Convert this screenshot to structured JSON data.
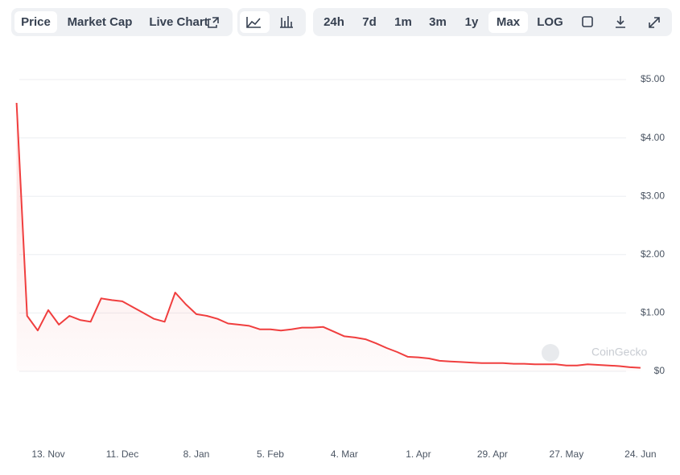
{
  "toolbar": {
    "left": [
      "Price",
      "Market Cap",
      "Live Chart"
    ],
    "right": [
      "24h",
      "7d",
      "1m",
      "3m",
      "1y",
      "Max",
      "LOG"
    ],
    "selected_left": "Price",
    "selected_right": "Max"
  },
  "chart_data": {
    "type": "line",
    "watermark": "CoinGecko",
    "color": "#f03e3e",
    "categories": [
      null,
      null,
      null,
      "13. Nov",
      null,
      null,
      null,
      null,
      null,
      null,
      "11. Dec",
      null,
      null,
      null,
      null,
      null,
      null,
      "8. Jan",
      null,
      null,
      null,
      null,
      null,
      null,
      "5. Feb",
      null,
      null,
      null,
      null,
      null,
      null,
      "4. Mar",
      null,
      null,
      null,
      null,
      null,
      null,
      "1. Apr",
      null,
      null,
      null,
      null,
      null,
      null,
      "29. Apr",
      null,
      null,
      null,
      null,
      null,
      null,
      "27. May",
      null,
      null,
      null,
      null,
      null,
      null,
      "24. Jun"
    ],
    "values": [
      4.6,
      0.95,
      0.7,
      1.05,
      0.8,
      0.95,
      0.88,
      0.85,
      1.25,
      1.22,
      1.2,
      1.1,
      1.0,
      0.9,
      0.85,
      1.35,
      1.15,
      0.98,
      0.95,
      0.9,
      0.82,
      0.8,
      0.78,
      0.72,
      0.72,
      0.7,
      0.72,
      0.75,
      0.75,
      0.76,
      0.68,
      0.6,
      0.58,
      0.55,
      0.48,
      0.4,
      0.33,
      0.25,
      0.24,
      0.22,
      0.18,
      0.17,
      0.16,
      0.15,
      0.14,
      0.14,
      0.14,
      0.13,
      0.13,
      0.12,
      0.12,
      0.12,
      0.1,
      0.1,
      0.12,
      0.11,
      0.1,
      0.09,
      0.07,
      0.06
    ],
    "ylim": [
      0,
      5
    ],
    "yticks": [
      {
        "value": 5,
        "label": "$5.00"
      },
      {
        "value": 4,
        "label": "$4.00"
      },
      {
        "value": 3,
        "label": "$3.00"
      },
      {
        "value": 2,
        "label": "$2.00"
      },
      {
        "value": 1,
        "label": "$1.00"
      },
      {
        "value": 0,
        "label": "$0"
      }
    ],
    "grid": true
  }
}
